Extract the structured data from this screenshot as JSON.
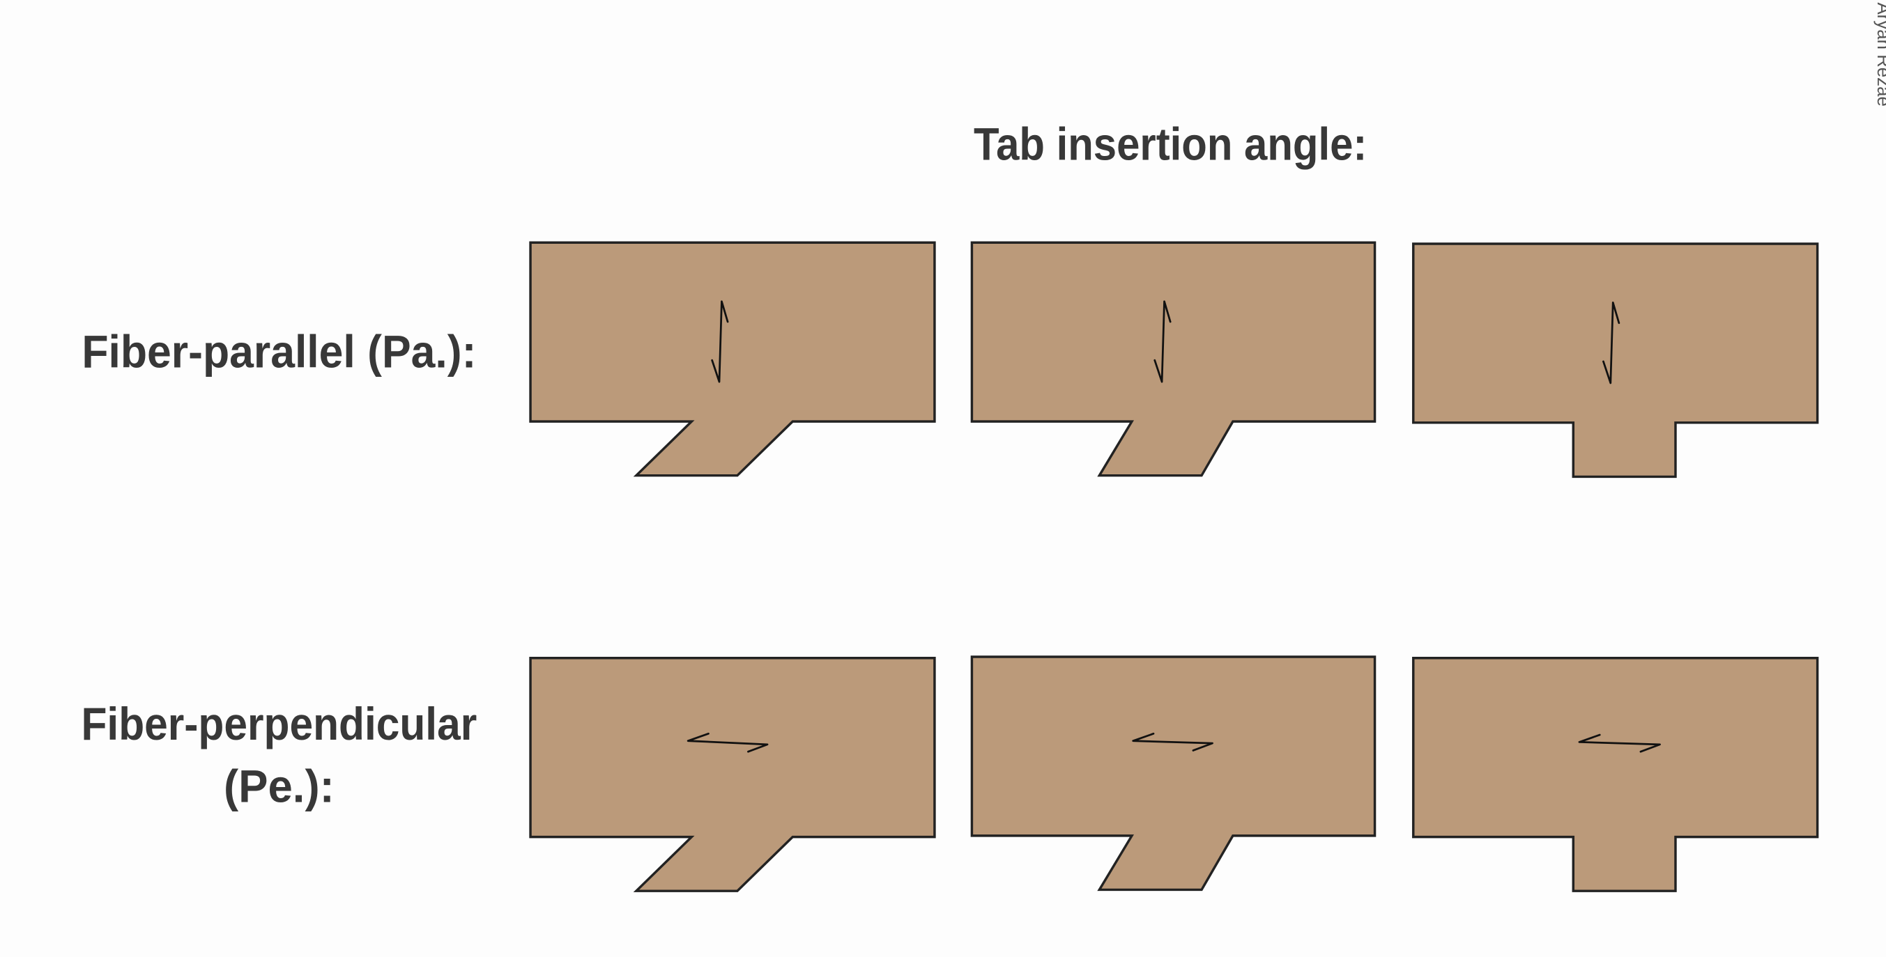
{
  "header": {
    "title": "Tab insertion angle:"
  },
  "rows": [
    {
      "label": [
        "Fiber-parallel (Pa.):"
      ]
    },
    {
      "label": [
        "Fiber-perpendicular",
        "(Pe.):"
      ]
    }
  ],
  "watermark": "Aryan Rezae"
}
